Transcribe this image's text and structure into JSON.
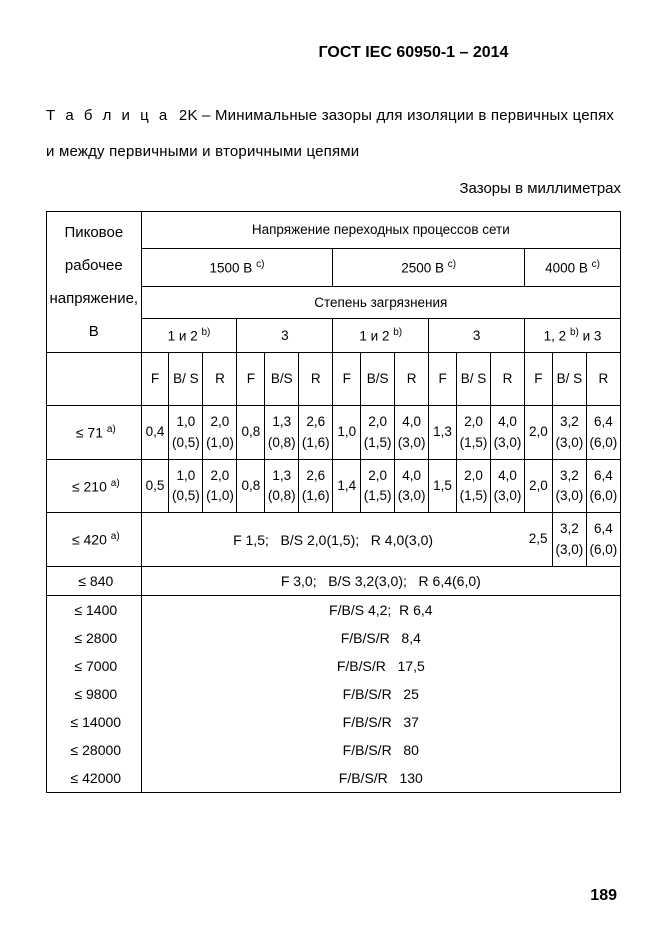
{
  "header": "ГОСТ IEC 60950-1 – 2014",
  "table_label_prefix": "Т а б л и ц а",
  "table_number": "2K",
  "table_title": "– Минимальные зазоры для изоляции в первичных цепях и между первичными и вторичными цепями",
  "units_caption": "Зазоры в миллиметрах",
  "col_header_main": "Напряжение переходных процессов сети",
  "row_header_main": "Пиковое рабочее напряжение, В",
  "voltages": {
    "v1500": "1500 В",
    "v2500": "2500 В",
    "v4000": "4000 В"
  },
  "sup_b": "b)",
  "sup_c": "c)",
  "sup_a": "a)",
  "pollution_caption": "Степень загрязнения",
  "pollution": {
    "p12": "1 и 2",
    "p3": "3",
    "p123": "1, 2",
    "p123_suffix": " и 3"
  },
  "subcols": {
    "F": "F",
    "BS": "B/ S",
    "BS_flat": "B/S",
    "R": "R"
  },
  "rows_simple": [
    {
      "label": "≤ 71",
      "sup": "a)",
      "vals": [
        "0,4",
        "1,0 (0,5)",
        "2,0 (1,0)",
        "0,8",
        "1,3 (0,8)",
        "2,6 (1,6)",
        "1,0",
        "2,0 (1,5)",
        "4,0 (3,0)",
        "1,3",
        "2,0 (1,5)",
        "4,0 (3,0)",
        "2,0",
        "3,2 (3,0)",
        "6,4 (6,0)"
      ]
    },
    {
      "label": "≤ 210",
      "sup": "a)",
      "vals": [
        "0,5",
        "1,0 (0,5)",
        "2,0 (1,0)",
        "0,8",
        "1,3 (0,8)",
        "2,6 (1,6)",
        "1,4",
        "2,0 (1,5)",
        "4,0 (3,0)",
        "1,5",
        "2,0 (1,5)",
        "4,0 (3,0)",
        "2,0",
        "3,2 (3,0)",
        "6,4 (6,0)"
      ]
    }
  ],
  "row420": {
    "label": "≤ 420",
    "sup": "a)",
    "merged": "F 1,5;   B/S 2,0(1,5);   R 4,0(3,0)",
    "tail": [
      "2,5",
      "3,2 (3,0)",
      "6,4 (6,0)"
    ]
  },
  "row840": {
    "label": "≤ 840",
    "merged": "F 3,0;   B/S 3,2(3,0);   R 6,4(6,0)"
  },
  "rows_full_merge": [
    {
      "label": "≤ 1400",
      "text": "F/B/S 4,2;  R 6,4"
    },
    {
      "label": "≤ 2800",
      "text": "F/B/S/R   8,4"
    },
    {
      "label": "≤ 7000",
      "text": "F/B/S/R   17,5"
    },
    {
      "label": "≤ 9800",
      "text": "F/B/S/R   25"
    },
    {
      "label": "≤ 14000",
      "text": "F/B/S/R   37"
    },
    {
      "label": "≤ 28000",
      "text": "F/B/S/R   80"
    },
    {
      "label": "≤ 42000",
      "text": "F/B/S/R   130"
    }
  ],
  "page_number": "189"
}
